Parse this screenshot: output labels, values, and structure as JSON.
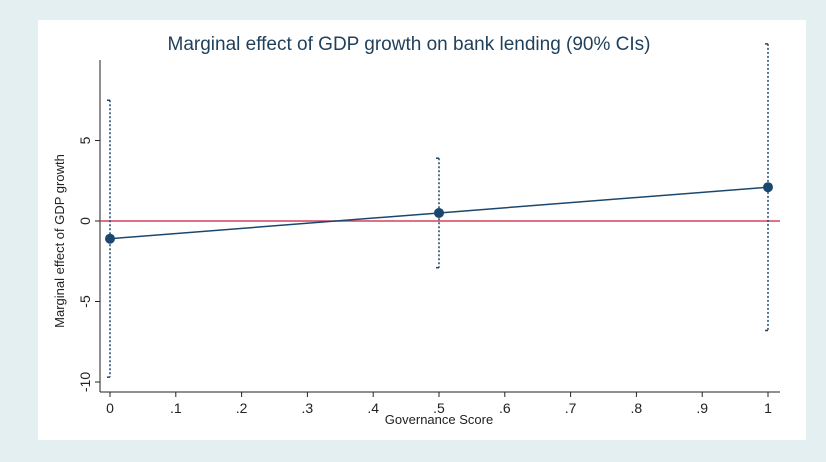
{
  "chart_data": {
    "type": "scatter",
    "title": "Marginal effect of GDP growth on bank lending (90% CIs)",
    "xlabel": "Governance Score",
    "ylabel": "Marginal effect of GDP growth",
    "xlim": [
      0,
      1
    ],
    "ylim": [
      -10,
      10
    ],
    "x_ticks": [
      "0",
      ".1",
      ".2",
      ".3",
      ".4",
      ".5",
      ".6",
      ".7",
      ".8",
      ".9",
      "1"
    ],
    "x_tick_values": [
      0,
      0.1,
      0.2,
      0.3,
      0.4,
      0.5,
      0.6,
      0.7,
      0.8,
      0.9,
      1
    ],
    "y_ticks": [
      "-10",
      "-5",
      "0",
      "5"
    ],
    "y_tick_values": [
      -10,
      -5,
      0,
      5
    ],
    "grid": false,
    "reference_line": {
      "y": 0,
      "color": "#d0435a"
    },
    "series": [
      {
        "x": [
          0,
          0.5,
          1
        ],
        "y": [
          -1.1,
          0.5,
          2.1
        ],
        "ci_lower": [
          -9.7,
          -2.9,
          -6.8
        ],
        "ci_upper": [
          7.5,
          3.9,
          11.0
        ],
        "color": "#1a476f"
      }
    ]
  }
}
